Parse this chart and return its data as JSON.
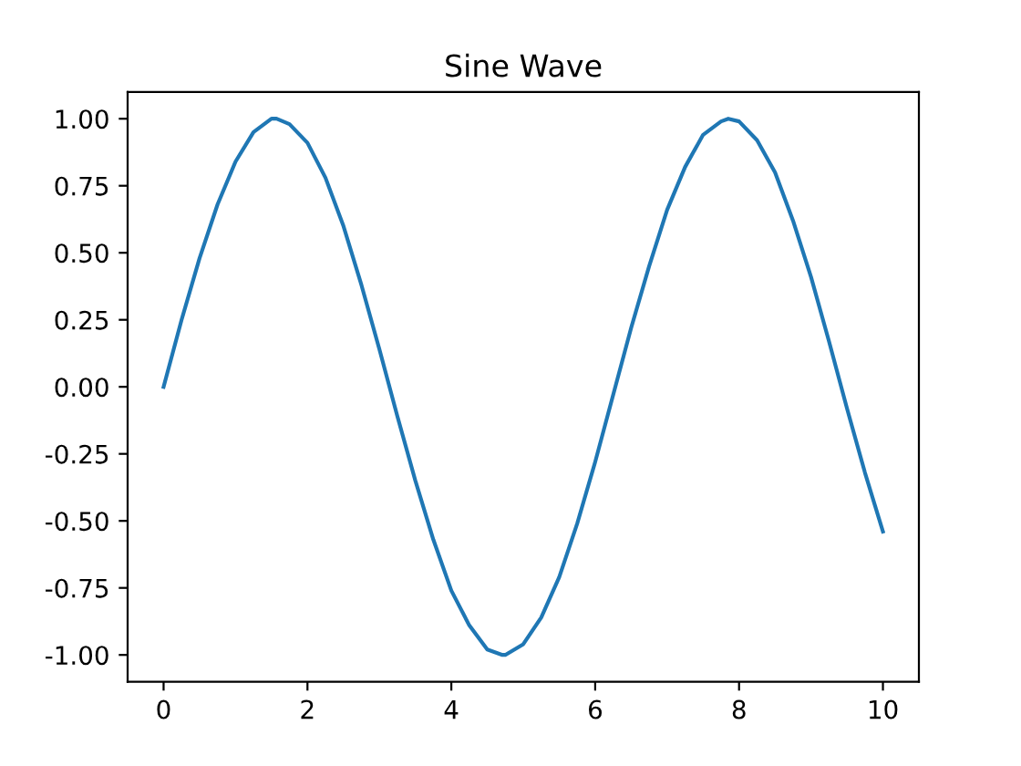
{
  "chart_data": {
    "type": "line",
    "title": "Sine Wave",
    "x": [
      0,
      0.25,
      0.5,
      0.75,
      1,
      1.25,
      1.5,
      1.57,
      1.75,
      2,
      2.25,
      2.5,
      2.75,
      3,
      3.25,
      3.5,
      3.75,
      4,
      4.25,
      4.5,
      4.71,
      4.75,
      5,
      5.25,
      5.5,
      5.75,
      6,
      6.25,
      6.5,
      6.75,
      7,
      7.25,
      7.5,
      7.75,
      7.85,
      8,
      8.25,
      8.5,
      8.75,
      9,
      9.25,
      9.5,
      9.75,
      10
    ],
    "series": [
      {
        "color": "#1f77b4",
        "values": [
          0,
          0.25,
          0.48,
          0.68,
          0.84,
          0.95,
          1.0,
          1.0,
          0.98,
          0.91,
          0.78,
          0.6,
          0.38,
          0.14,
          -0.11,
          -0.35,
          -0.57,
          -0.76,
          -0.89,
          -0.98,
          -1.0,
          -1.0,
          -0.96,
          -0.86,
          -0.71,
          -0.51,
          -0.28,
          -0.03,
          0.22,
          0.45,
          0.66,
          0.82,
          0.94,
          0.99,
          1.0,
          0.99,
          0.92,
          0.8,
          0.62,
          0.41,
          0.17,
          -0.08,
          -0.32,
          -0.54
        ]
      }
    ],
    "xlim": [
      -0.5,
      10.5
    ],
    "ylim": [
      -1.1,
      1.1
    ],
    "xticks": [
      0,
      2,
      4,
      6,
      8,
      10
    ],
    "yticks": [
      {
        "value": -1,
        "label": "-1.00"
      },
      {
        "value": -0.75,
        "label": "-0.75"
      },
      {
        "value": -0.5,
        "label": "-0.50"
      },
      {
        "value": -0.25,
        "label": "-0.25"
      },
      {
        "value": 0,
        "label": "0.00"
      },
      {
        "value": 0.25,
        "label": "0.25"
      },
      {
        "value": 0.5,
        "label": "0.50"
      },
      {
        "value": 0.75,
        "label": "0.75"
      },
      {
        "value": 1,
        "label": "1.00"
      }
    ],
    "grid": false,
    "legend": false,
    "marker": "none",
    "line_style": "solid"
  }
}
